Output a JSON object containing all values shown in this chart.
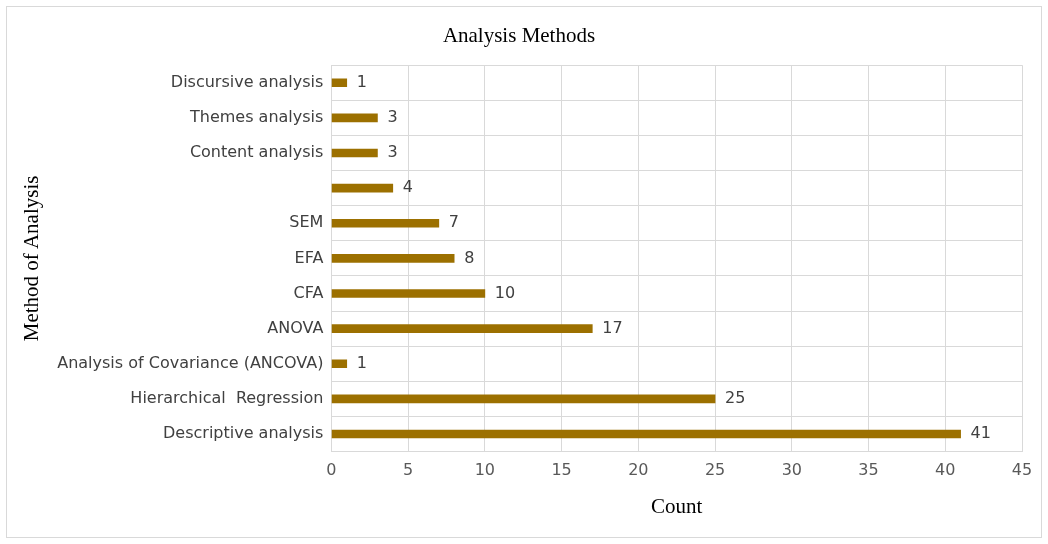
{
  "chart_data": {
    "type": "bar",
    "orientation": "horizontal",
    "title": "Analysis Methods",
    "xlabel": "Count",
    "ylabel": "Method of Analysis",
    "categories": [
      "Discursive analysis",
      "Themes analysis",
      "Content analysis",
      null,
      "SEM",
      "EFA",
      "CFA",
      "ANOVA",
      "Analysis of Covariance (ANCOVA)",
      "Hierarchical  Regression",
      "Descriptive analysis"
    ],
    "values": [
      1,
      3,
      3,
      4,
      7,
      8,
      10,
      17,
      1,
      25,
      41
    ],
    "color": "#9c7000",
    "xlim": [
      0,
      45
    ],
    "xticks": [
      0,
      5,
      10,
      15,
      20,
      25,
      30,
      35,
      40,
      45
    ],
    "grid": true,
    "legend": false,
    "data_labels": true
  }
}
